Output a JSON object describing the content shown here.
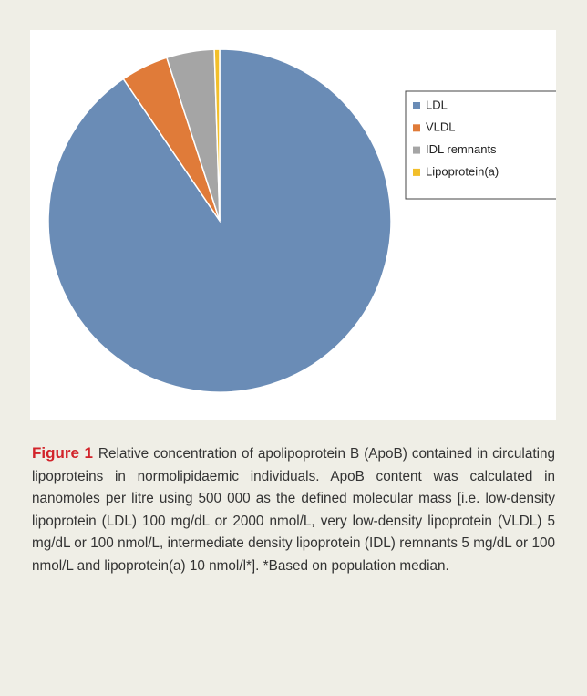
{
  "chart_data": {
    "type": "pie",
    "categories": [
      "LDL",
      "VLDL",
      "IDL remnants",
      "Lipoprotein(a)"
    ],
    "values": [
      90.5,
      4.5,
      4.5,
      0.5
    ],
    "colors": [
      "#6a8cb6",
      "#e07b39",
      "#a5a5a5",
      "#f2bf2a"
    ],
    "legend": "right"
  },
  "caption": {
    "label": "Figure 1",
    "text": "Relative concentration of apolipoprotein B (ApoB) contained in circulating lipoproteins in normolipidaemic individuals. ApoB content was calculated in nanomoles per litre using 500 000 as the defined molecular mass [i.e. low-density lipoprotein (LDL) 100 mg/dL or 2000 nmol/L, very low-density lipoprotein (VLDL) 5 mg/dL or 100 nmol/L, intermediate density lipoprotein (IDL) remnants 5 mg/dL or 100 nmol/L and lipoprotein(a) 10 nmol/l*]. *Based on population median."
  }
}
